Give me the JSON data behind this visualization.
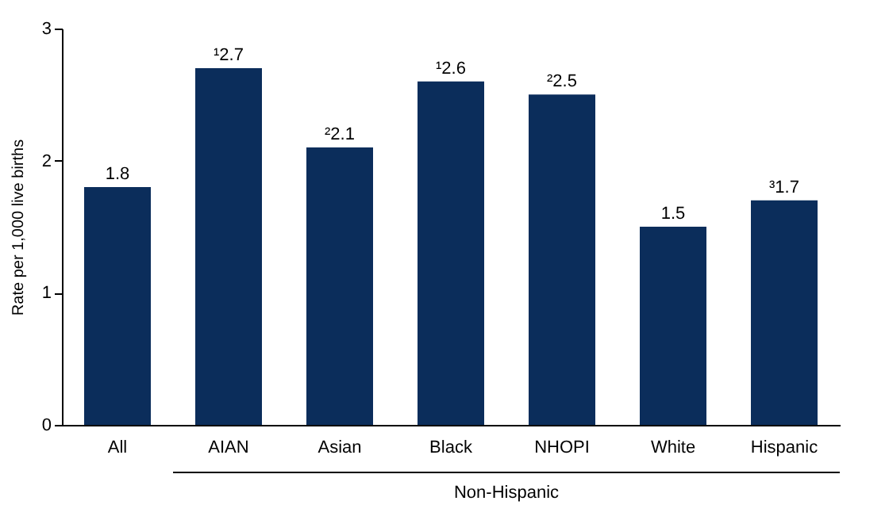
{
  "chart_data": {
    "type": "bar",
    "ylabel": "Rate per 1,000 live births",
    "categories": [
      "All",
      "AIAN",
      "Asian",
      "Black",
      "NHOPI",
      "White",
      "Hispanic"
    ],
    "values": [
      1.8,
      2.7,
      2.1,
      2.6,
      2.5,
      1.5,
      1.7
    ],
    "value_labels": [
      "1.8",
      "¹2.7",
      "²2.1",
      "¹2.6",
      "²2.5",
      "1.5",
      "³1.7"
    ],
    "color": "#0b2d5b",
    "ylim": [
      0,
      3
    ],
    "yticks": [
      0,
      1,
      2,
      3
    ],
    "grid": false,
    "annotations": [
      "Non-Hispanic"
    ]
  }
}
